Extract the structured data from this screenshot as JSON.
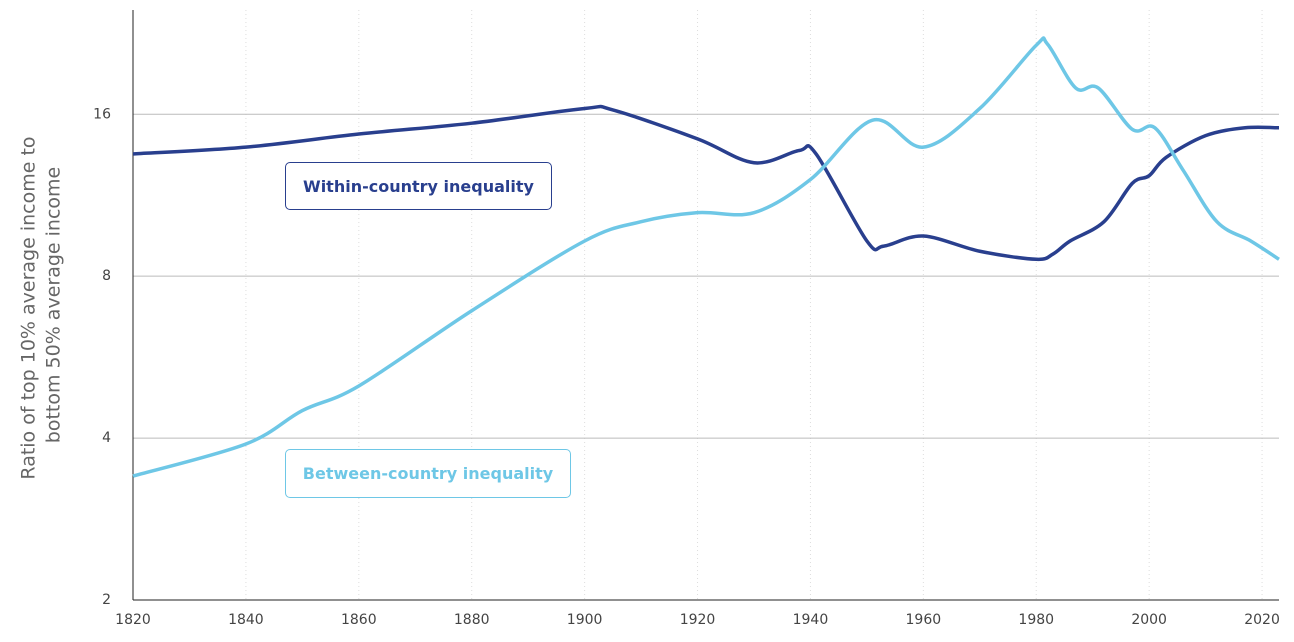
{
  "chart_data": {
    "type": "line",
    "y_label": [
      "Ratio of top 10% average income to",
      "bottom 50% average income"
    ],
    "log_scale": true,
    "grid": true,
    "xlim": [
      1820,
      2023
    ],
    "xticks": [
      1820,
      1840,
      1860,
      1880,
      1900,
      1920,
      1940,
      1960,
      1980,
      2000,
      2020
    ],
    "ylim": [
      2,
      25
    ],
    "yticks": [
      2,
      4,
      8,
      16
    ],
    "series": [
      {
        "name": "Within-country inequality",
        "color": "#293f8e",
        "x": [
          1820,
          1840,
          1860,
          1880,
          1900,
          1905,
          1920,
          1930,
          1938,
          1941,
          1950,
          1953,
          1960,
          1970,
          1980,
          1983,
          1986,
          1992,
          1997,
          2000,
          2003,
          2010,
          2017,
          2023
        ],
        "values": [
          13.5,
          13.9,
          14.7,
          15.4,
          16.4,
          16.3,
          14.4,
          13.0,
          13.7,
          13.5,
          9.3,
          9.1,
          9.5,
          8.9,
          8.6,
          8.8,
          9.3,
          10.1,
          11.9,
          12.3,
          13.3,
          14.6,
          15.1,
          15.1
        ]
      },
      {
        "name": "Between-country inequality",
        "color": "#6ec7e6",
        "x": [
          1820,
          1840,
          1850,
          1860,
          1880,
          1900,
          1910,
          1920,
          1930,
          1940,
          1951,
          1960,
          1970,
          1980,
          1982,
          1987,
          1991,
          1997,
          2001,
          2006,
          2012,
          2018,
          2023
        ],
        "values": [
          3.4,
          3.9,
          4.5,
          5.0,
          6.9,
          9.3,
          10.1,
          10.5,
          10.5,
          12.1,
          15.6,
          13.9,
          16.4,
          21.5,
          21.6,
          17.9,
          17.9,
          15.0,
          15.1,
          12.6,
          10.1,
          9.3,
          8.6
        ]
      }
    ]
  }
}
